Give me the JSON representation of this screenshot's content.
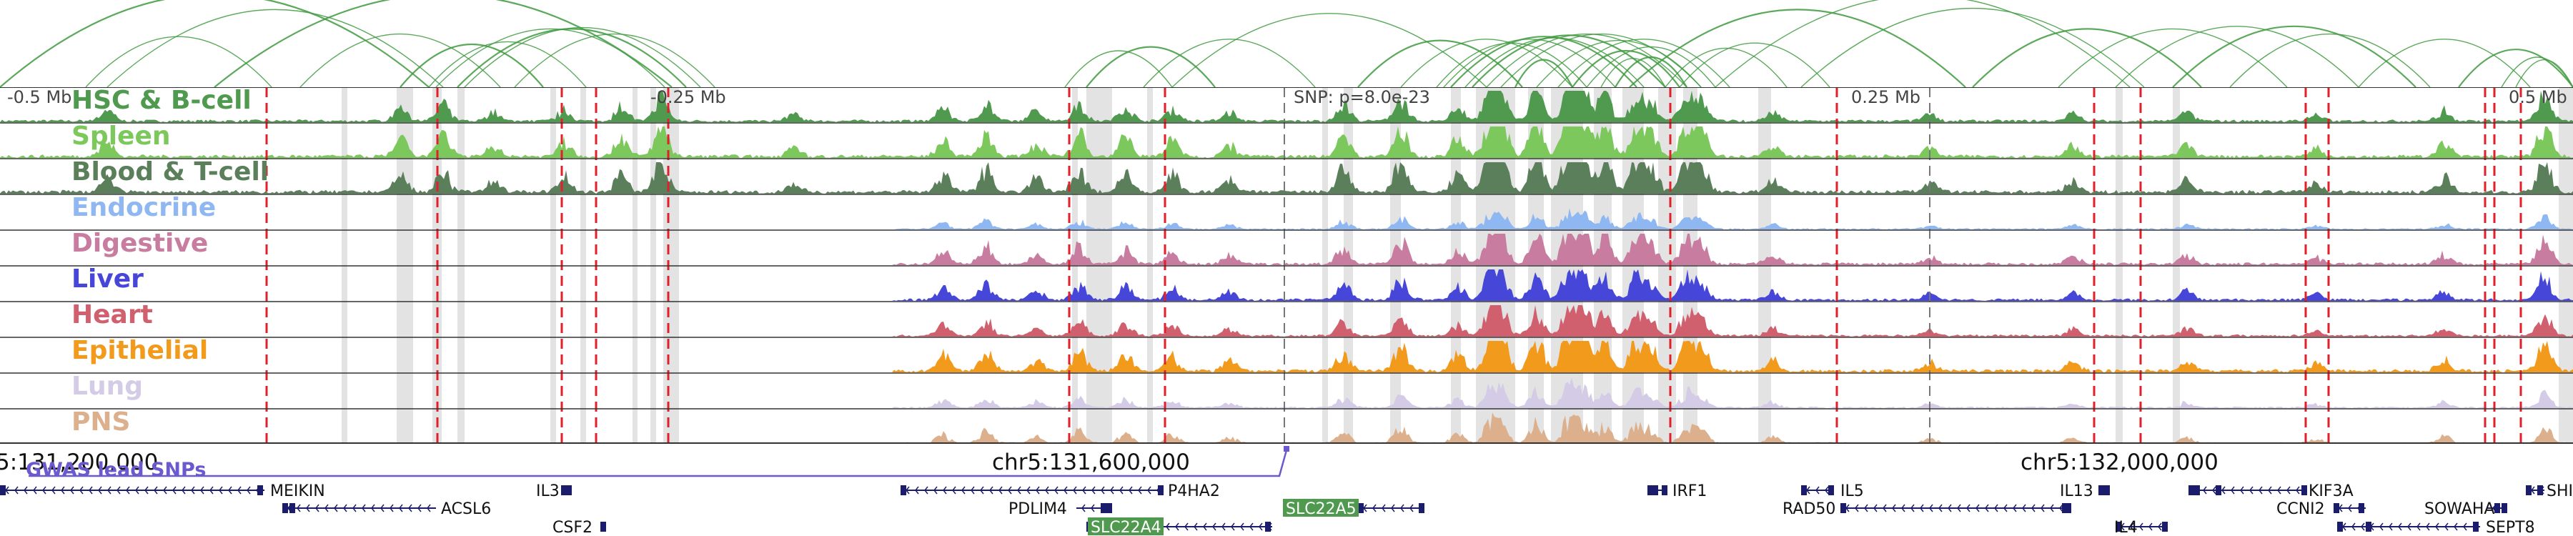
{
  "tracks": [
    {
      "name": "HSC & B-cell",
      "color": "#4f9a4f"
    },
    {
      "name": "Spleen",
      "color": "#7cc85c"
    },
    {
      "name": "Blood & T-cell",
      "color": "#5a7f5a"
    },
    {
      "name": "Endocrine",
      "color": "#8fb8f2"
    },
    {
      "name": "Digestive",
      "color": "#c87ca0"
    },
    {
      "name": "Liver",
      "color": "#4646d8"
    },
    {
      "name": "Heart",
      "color": "#d0606e"
    },
    {
      "name": "Epithelial",
      "color": "#f29a1c"
    },
    {
      "name": "Lung",
      "color": "#d4cbe6"
    },
    {
      "name": "PNS",
      "color": "#dcb08c"
    }
  ],
  "scale_labels": [
    "-0.5 Mb",
    "-0.25 Mb",
    "SNP: p=8.0e-23",
    "0.25 Mb",
    "0.5 Mb"
  ],
  "coord_labels": [
    "5:131,200,000",
    "chr5:131,600,000",
    "chr5:132,000,000"
  ],
  "gwas_label": "GWAS lead SNPs",
  "genes": [
    {
      "name": "MEIKIN",
      "highlighted": false
    },
    {
      "name": "ACSL6",
      "highlighted": false
    },
    {
      "name": "IL3",
      "highlighted": false
    },
    {
      "name": "CSF2",
      "highlighted": false
    },
    {
      "name": "P4HA2",
      "highlighted": false
    },
    {
      "name": "PDLIM4",
      "highlighted": false
    },
    {
      "name": "SLC22A4",
      "highlighted": true
    },
    {
      "name": "SLC22A5",
      "highlighted": true
    },
    {
      "name": "IRF1",
      "highlighted": false
    },
    {
      "name": "IL5",
      "highlighted": false
    },
    {
      "name": "RAD50",
      "highlighted": false
    },
    {
      "name": "IL13",
      "highlighted": false
    },
    {
      "name": "IL4",
      "highlighted": false
    },
    {
      "name": "KIF3A",
      "highlighted": false
    },
    {
      "name": "CCNI2",
      "highlighted": false
    },
    {
      "name": "SOWAHA",
      "highlighted": false
    },
    {
      "name": "SEPT8",
      "highlighted": false
    },
    {
      "name": "SHI",
      "highlighted": false
    }
  ],
  "colors": {
    "arc": "#3f9a3f",
    "highlight_band": "#d9d9d9",
    "snp_line": "#e0202a",
    "gwas": "#6a5acd",
    "gene_strand": "#1c1c6c",
    "gene_highlight_bg": "#4f9a4f"
  }
}
